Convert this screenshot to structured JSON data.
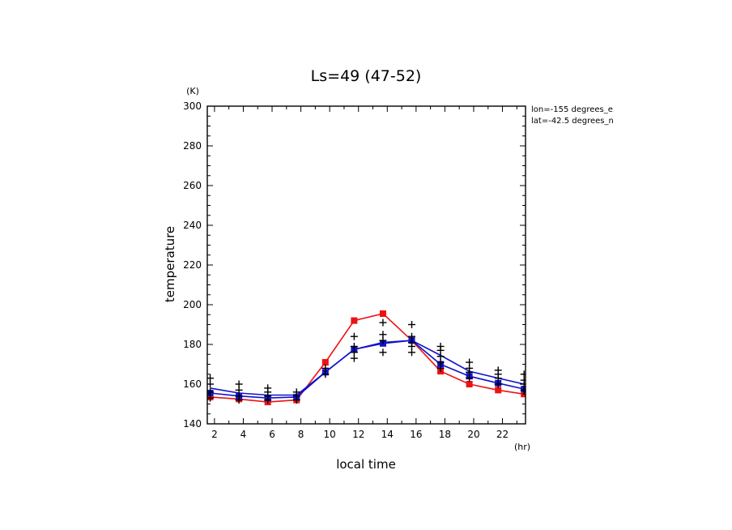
{
  "chart_data": {
    "type": "line",
    "title": "Ls=49 (47-52)",
    "xlabel": "local time",
    "ylabel": "temperature",
    "x_unit": "(hr)",
    "y_unit": "(K)",
    "xlim": [
      1.5,
      23.6
    ],
    "ylim": [
      140,
      300
    ],
    "xticks": [
      2,
      4,
      6,
      8,
      10,
      12,
      14,
      16,
      18,
      20,
      22
    ],
    "yticks": [
      140,
      160,
      180,
      200,
      220,
      240,
      260,
      280,
      300
    ],
    "annotations": [
      "lon=-155 degrees_e",
      "lat=-42.5 degrees_n"
    ],
    "x": [
      1.7,
      3.7,
      5.7,
      7.7,
      9.7,
      11.7,
      13.7,
      15.7,
      17.7,
      19.7,
      21.7,
      23.5
    ],
    "series": [
      {
        "color": "#ee1111",
        "marker": "square",
        "values": [
          153.5,
          152.5,
          151,
          152,
          171,
          192,
          195.5,
          182,
          166.5,
          160,
          157,
          155
        ]
      },
      {
        "color": "#1111cc",
        "marker": "square",
        "values": [
          155.5,
          154,
          153,
          153.5,
          166,
          177.5,
          180.5,
          182,
          170,
          164,
          160.5,
          157.5
        ]
      },
      {
        "color": "#1111cc",
        "marker": "none",
        "values": [
          158,
          155.5,
          154.5,
          154.5,
          166,
          177.5,
          181,
          182,
          174.5,
          166.5,
          163,
          160
        ]
      }
    ],
    "scatter": {
      "color": "#000000",
      "marker": "plus",
      "x": [
        1.7,
        1.7,
        1.7,
        1.7,
        3.7,
        3.7,
        3.7,
        3.7,
        5.7,
        5.7,
        5.7,
        5.7,
        7.7,
        7.7,
        7.7,
        9.7,
        9.7,
        11.7,
        11.7,
        11.7,
        11.7,
        13.7,
        13.7,
        13.7,
        13.7,
        15.7,
        15.7,
        15.7,
        15.7,
        15.7,
        17.7,
        17.7,
        17.7,
        17.7,
        17.7,
        19.7,
        19.7,
        19.7,
        19.7,
        21.7,
        21.7,
        21.7,
        21.7,
        23.5,
        23.5,
        23.5,
        23.5
      ],
      "values": [
        163,
        160,
        156,
        153,
        160,
        157,
        154,
        152,
        158,
        156,
        154,
        152,
        156,
        154,
        152,
        168,
        165,
        184,
        179,
        176,
        173,
        191,
        185,
        182,
        176,
        190,
        184,
        181,
        179,
        176,
        179,
        177,
        174,
        171,
        168,
        171,
        168,
        166,
        163,
        167,
        165,
        163,
        160,
        165,
        162,
        160,
        157
      ]
    }
  }
}
